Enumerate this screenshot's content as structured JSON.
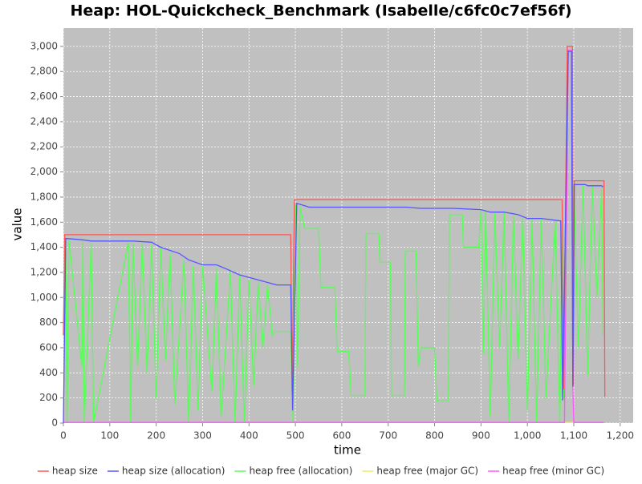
{
  "chart_data": {
    "type": "line",
    "title": "Heap: HOL-Quickcheck_Benchmark (Isabelle/c6fc0c7ef56f)",
    "x_label": "time",
    "y_label": "value",
    "xlim": [
      0,
      1228
    ],
    "ylim": [
      0,
      3146
    ],
    "xticks": [
      0,
      100,
      200,
      300,
      400,
      500,
      600,
      700,
      800,
      900,
      {
        "value": 1000,
        "label": "1,000"
      },
      {
        "value": 1100,
        "label": "1,100"
      },
      {
        "value": 1200,
        "label": "1,200"
      }
    ],
    "yticks": [
      0,
      200,
      400,
      600,
      800,
      {
        "value": 1000,
        "label": "1,000"
      },
      {
        "value": 1200,
        "label": "1,200"
      },
      {
        "value": 1400,
        "label": "1,400"
      },
      {
        "value": 1600,
        "label": "1,600"
      },
      {
        "value": 1800,
        "label": "1,800"
      },
      {
        "value": 2000,
        "label": "2,000"
      },
      {
        "value": 2200,
        "label": "2,200"
      },
      {
        "value": 2400,
        "label": "2,400"
      },
      {
        "value": 2600,
        "label": "2,600"
      },
      {
        "value": 2800,
        "label": "2,800"
      },
      {
        "value": 3000,
        "label": "3,000"
      }
    ],
    "grid": true,
    "legend": "bottom",
    "series": [
      {
        "name": "heap size",
        "color": "#ff5555",
        "x": [
          0,
          3,
          490,
          493,
          498,
          1075,
          1078,
          1086,
          1097,
          1099,
          1101,
          1165,
          1167
        ],
        "values": [
          700,
          1500,
          1500,
          250,
          1780,
          1780,
          270,
          3000,
          3000,
          300,
          1930,
          1930,
          210
        ]
      },
      {
        "name": "heap size (allocation)",
        "color": "#5555ff",
        "x": [
          0,
          5,
          40,
          60,
          150,
          190,
          210,
          250,
          270,
          300,
          330,
          350,
          380,
          410,
          440,
          460,
          490,
          494,
          503,
          530,
          740,
          770,
          840,
          900,
          920,
          950,
          980,
          1000,
          1030,
          1072,
          1076,
          1088,
          1095,
          1098,
          1101,
          1125,
          1130,
          1160,
          1163
        ],
        "values": [
          0,
          1470,
          1460,
          1450,
          1450,
          1440,
          1400,
          1350,
          1300,
          1260,
          1260,
          1230,
          1180,
          1150,
          1120,
          1100,
          1100,
          100,
          1750,
          1720,
          1720,
          1710,
          1710,
          1700,
          1680,
          1680,
          1660,
          1630,
          1630,
          1610,
          180,
          2960,
          2960,
          290,
          1900,
          1900,
          1890,
          1890,
          1880
        ]
      },
      {
        "name": "heap free (allocation)",
        "color": "#55ff55",
        "x": [
          0,
          5,
          8,
          12,
          40,
          42,
          45,
          60,
          65,
          140,
          145,
          150,
          160,
          170,
          180,
          190,
          200,
          210,
          220,
          230,
          240,
          260,
          270,
          280,
          290,
          300,
          320,
          330,
          340,
          360,
          370,
          380,
          390,
          400,
          410,
          420,
          430,
          440,
          450,
          455,
          490,
          495,
          500,
          505,
          510,
          520,
          550,
          555,
          585,
          590,
          615,
          620,
          650,
          652,
          680,
          682,
          705,
          707,
          735,
          737,
          760,
          765,
          770,
          800,
          805,
          830,
          832,
          860,
          862,
          895,
          900,
          905,
          910,
          920,
          930,
          940,
          950,
          960,
          970,
          980,
          990,
          1000,
          1010,
          1020,
          1030,
          1040,
          1060,
          1070,
          1075,
          1078,
          1088,
          1095,
          1098,
          1100,
          1110,
          1120,
          1130,
          1140,
          1150,
          1160,
          1163
        ],
        "values": [
          700,
          1470,
          0,
          1460,
          450,
          1450,
          0,
          1440,
          0,
          1440,
          0,
          1430,
          450,
          1430,
          400,
          1420,
          200,
          1390,
          500,
          1350,
          150,
          1300,
          0,
          1250,
          100,
          1250,
          250,
          1240,
          50,
          1210,
          0,
          1170,
          0,
          1140,
          300,
          1120,
          600,
          1100,
          700,
          730,
          730,
          0,
          1740,
          450,
          1720,
          1550,
          1550,
          1080,
          1080,
          570,
          570,
          220,
          220,
          1510,
          1510,
          1280,
          1280,
          220,
          220,
          1370,
          1370,
          450,
          600,
          600,
          180,
          180,
          1660,
          1660,
          1400,
          1400,
          1700,
          550,
          1690,
          50,
          1670,
          600,
          1670,
          0,
          1650,
          500,
          1640,
          100,
          1620,
          0,
          1620,
          200,
          1610,
          0,
          1600,
          200,
          2960,
          2960,
          300,
          1900,
          600,
          1890,
          380,
          1890,
          1000,
          1880,
          700
        ]
      },
      {
        "name": "heap free (major GC)",
        "color": "#eeee55",
        "x": [
          0,
          1165
        ],
        "values": [
          5,
          5
        ]
      },
      {
        "name": "heap free (minor GC)",
        "color": "#ff55ff",
        "x": [
          0,
          1080,
          1088,
          1095,
          1098,
          1100,
          1165
        ],
        "values": [
          5,
          5,
          2970,
          2970,
          300,
          5,
          5
        ]
      }
    ]
  }
}
